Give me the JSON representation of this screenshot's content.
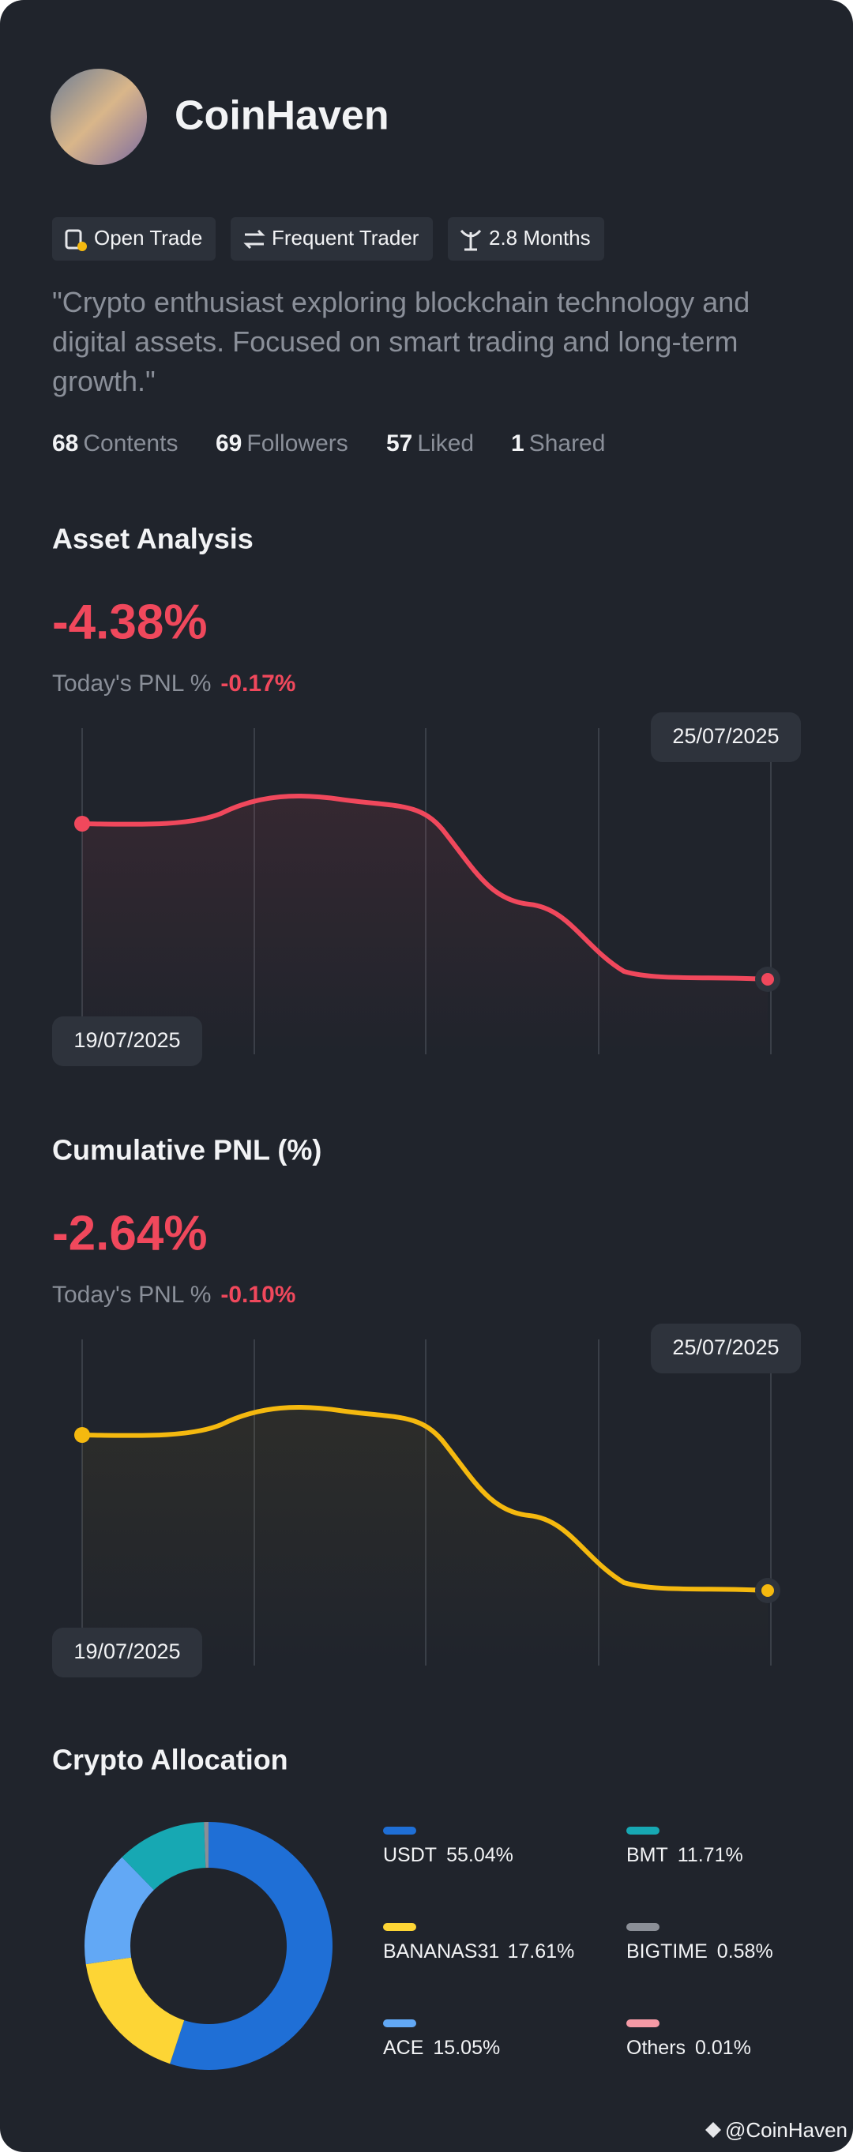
{
  "profile": {
    "name": "CoinHaven",
    "tags": [
      "Open Trade",
      "Frequent Trader",
      "2.8 Months"
    ],
    "bio": "\"Crypto enthusiast exploring blockchain technology and digital assets. Focused on smart trading and long-term growth.\"",
    "stats": [
      {
        "value": 68,
        "label": "Contents"
      },
      {
        "value": 69,
        "label": "Followers"
      },
      {
        "value": 57,
        "label": "Liked"
      },
      {
        "value": 1,
        "label": "Shared"
      }
    ]
  },
  "sections": [
    {
      "title": "Asset Analysis",
      "total": "-4.38%",
      "today_label": "Today's PNL %",
      "today_value": "-0.17%",
      "date_end": "25/07/2025",
      "date_start": "19/07/2025"
    },
    {
      "title": "Cumulative PNL (%)",
      "total": "-2.64%",
      "today_label": "Today's PNL %",
      "today_value": "-0.10%",
      "date_end": "25/07/2025",
      "date_start": "19/07/2025"
    }
  ],
  "chart_data": {
    "type": "donut",
    "title": "Crypto Allocation",
    "categories": [
      "USDT",
      "BANANAS31",
      "ACE",
      "BMT",
      "BIGTIME",
      "Others"
    ],
    "values": [
      55.04,
      17.61,
      15.05,
      11.71,
      0.58,
      0.01
    ],
    "value_labels": [
      "55.04%",
      "17.61%",
      "15.05%",
      "11.71%",
      "0.58%",
      "0.01%"
    ],
    "colors": [
      "#1f6fd6",
      "#fdd535",
      "#62a8f5",
      "#17a8b3",
      "#8b8f97",
      "#f59aa6"
    ]
  },
  "watermark": "@CoinHaven"
}
